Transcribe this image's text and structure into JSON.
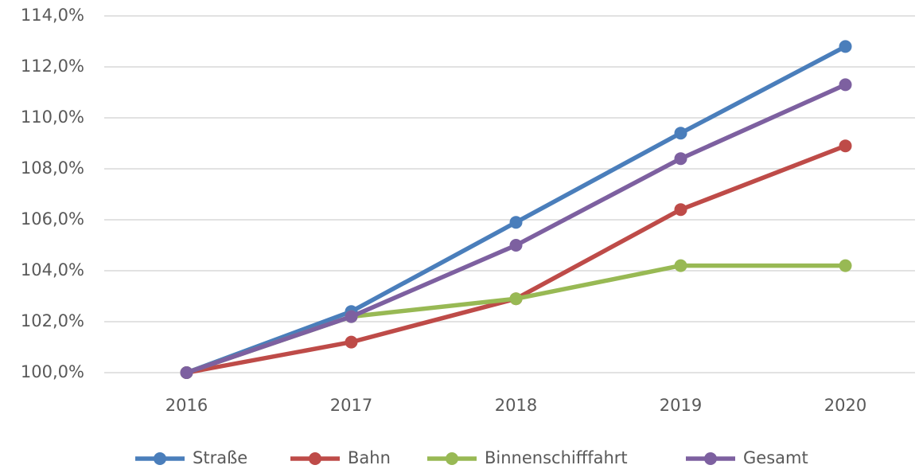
{
  "chart_data": {
    "type": "line",
    "categories": [
      "2016",
      "2017",
      "2018",
      "2019",
      "2020"
    ],
    "series": [
      {
        "name": "Straße",
        "color": "#4a7ebb",
        "values": [
          100,
          102.4,
          105.9,
          109.4,
          112.8
        ]
      },
      {
        "name": "Bahn",
        "color": "#be4b48",
        "values": [
          100,
          101.2,
          102.9,
          106.4,
          108.9
        ]
      },
      {
        "name": "Binnenschifffahrt",
        "color": "#98b954",
        "values": [
          100,
          102.2,
          102.9,
          104.2,
          104.2
        ]
      },
      {
        "name": "Gesamt",
        "color": "#7d60a0",
        "values": [
          100,
          102.2,
          105.0,
          108.4,
          111.3
        ]
      }
    ],
    "ylim": [
      100,
      114
    ],
    "yticks": [
      {
        "value": 100,
        "label": "100,0%"
      },
      {
        "value": 102,
        "label": "102,0%"
      },
      {
        "value": 104,
        "label": "104,0%"
      },
      {
        "value": 106,
        "label": "106,0%"
      },
      {
        "value": 108,
        "label": "108,0%"
      },
      {
        "value": 110,
        "label": "110,0%"
      },
      {
        "value": 112,
        "label": "112,0%"
      },
      {
        "value": 114,
        "label": "114,0%"
      }
    ],
    "grid": true,
    "legend": "bottom"
  }
}
